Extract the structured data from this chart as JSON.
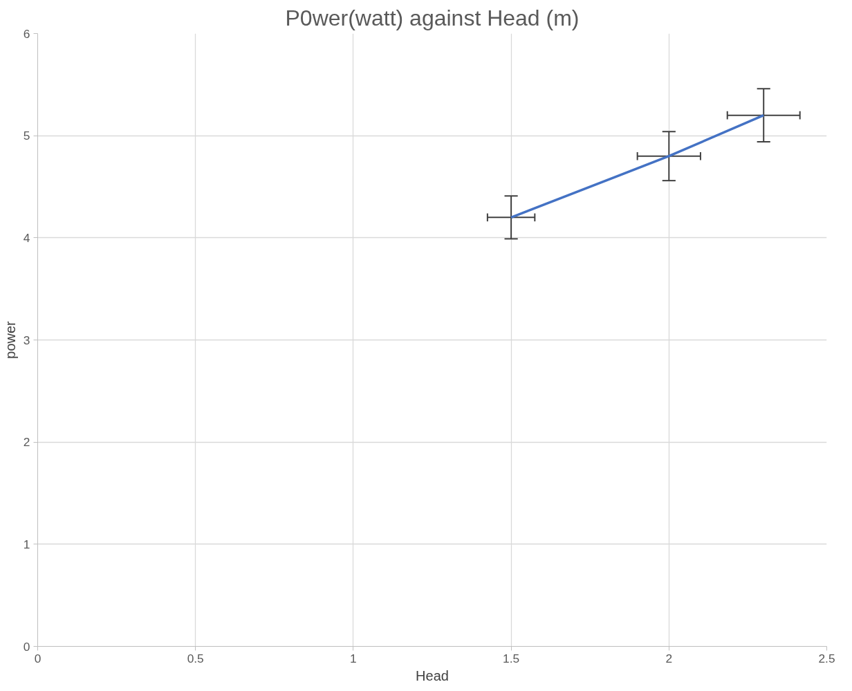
{
  "chart_data": {
    "type": "line",
    "title": "P0wer(watt) against Head (m)",
    "xlabel": "Head",
    "ylabel": "power",
    "x": [
      1.5,
      2,
      2.3
    ],
    "series": [
      {
        "color": "#4472c4",
        "values": [
          4.2,
          4.8,
          5.2
        ],
        "errors": [
          0.21,
          0.24,
          0.26
        ],
        "xerrors": [
          0.075,
          0.1,
          0.115
        ]
      }
    ],
    "xlim": [
      0,
      2.5
    ],
    "ylim": [
      0,
      6
    ],
    "xticks": [
      0,
      0.5,
      1,
      1.5,
      2,
      2.5
    ],
    "yticks": [
      0,
      1,
      2,
      3,
      4,
      5,
      6
    ],
    "grid": true,
    "marker": "none",
    "line_style": "solid"
  }
}
